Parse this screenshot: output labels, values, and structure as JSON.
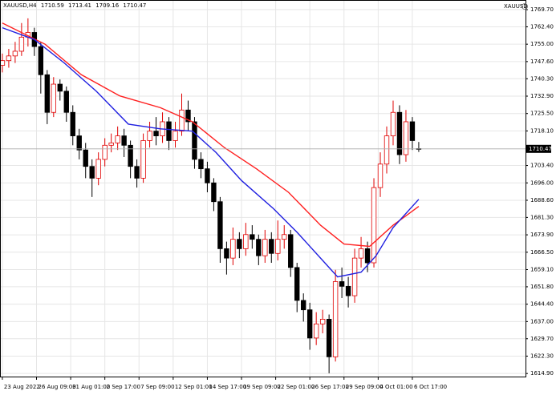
{
  "chart_data": {
    "type": "candlestick",
    "title": "XAUUSD,H4",
    "symbol": "XAUUSD",
    "up_color": "#e00000",
    "down_color": "#000000",
    "grid": true,
    "xlim": [
      -1.1,
      245
    ],
    "ylim": [
      1613.6,
      1773.8
    ],
    "xticks": [
      {
        "value": 0,
        "label": "23 Aug 2022"
      },
      {
        "value": 16,
        "label": "26 Aug 09:00"
      },
      {
        "value": 32,
        "label": "31 Aug 01:00"
      },
      {
        "value": 48,
        "label": "2 Sep 17:00"
      },
      {
        "value": 64,
        "label": "7 Sep 09:00"
      },
      {
        "value": 80,
        "label": "12 Sep 01:00"
      },
      {
        "value": 96,
        "label": "14 Sep 17:00"
      },
      {
        "value": 112,
        "label": "19 Sep 09:00"
      },
      {
        "value": 128,
        "label": "22 Sep 01:00"
      },
      {
        "value": 144,
        "label": "26 Sep 17:00"
      },
      {
        "value": 160,
        "label": "29 Sep 09:00"
      },
      {
        "value": 176,
        "label": "4 Oct 01:00"
      },
      {
        "value": 192,
        "label": "6 Oct 17:00"
      }
    ],
    "yticks": [
      {
        "value": 1769.7,
        "label": "1769.70"
      },
      {
        "value": 1762.4,
        "label": "1762.40"
      },
      {
        "value": 1755.0,
        "label": "1755.00"
      },
      {
        "value": 1747.6,
        "label": "1747.60"
      },
      {
        "value": 1740.3,
        "label": "1740.30"
      },
      {
        "value": 1732.9,
        "label": "1732.90"
      },
      {
        "value": 1725.5,
        "label": "1725.50"
      },
      {
        "value": 1718.1,
        "label": "1718.10"
      },
      {
        "value": 1703.4,
        "label": "1703.40"
      },
      {
        "value": 1696.0,
        "label": "1696.00"
      },
      {
        "value": 1688.6,
        "label": "1688.60"
      },
      {
        "value": 1681.3,
        "label": "1681.30"
      },
      {
        "value": 1673.9,
        "label": "1673.90"
      },
      {
        "value": 1666.5,
        "label": "1666.50"
      },
      {
        "value": 1659.1,
        "label": "1659.10"
      },
      {
        "value": 1651.8,
        "label": "1651.80"
      },
      {
        "value": 1644.4,
        "label": "1644.40"
      },
      {
        "value": 1637.0,
        "label": "1637.00"
      },
      {
        "value": 1629.7,
        "label": "1629.70"
      },
      {
        "value": 1622.3,
        "label": "1622.30"
      },
      {
        "value": 1614.9,
        "label": "1614.90"
      }
    ],
    "x": [
      0,
      3,
      6,
      9,
      12,
      15,
      18,
      21,
      24,
      27,
      30,
      33,
      36,
      39,
      42,
      45,
      48,
      51,
      54,
      57,
      60,
      63,
      66,
      69,
      72,
      75,
      78,
      81,
      84,
      87,
      90,
      93,
      96,
      99,
      102,
      105,
      108,
      111,
      114,
      117,
      120,
      123,
      126,
      129,
      132,
      135,
      138,
      141,
      144,
      147,
      150,
      153,
      156,
      159,
      162,
      165,
      168,
      171,
      174,
      177,
      180,
      183,
      186,
      189,
      192,
      195
    ],
    "open": [
      1746,
      1748,
      1750,
      1752,
      1758,
      1760,
      1754,
      1742,
      1726,
      1738,
      1735,
      1726,
      1716,
      1710,
      1703,
      1698,
      1706,
      1712,
      1713,
      1716,
      1712,
      1703,
      1698,
      1714,
      1718,
      1716,
      1722,
      1714,
      1718,
      1727,
      1722,
      1706,
      1702,
      1696,
      1688,
      1668,
      1664,
      1672,
      1668,
      1674,
      1672,
      1665,
      1672,
      1666,
      1672,
      1674,
      1660,
      1646,
      1642,
      1630,
      1636,
      1638,
      1622,
      1654,
      1652,
      1648,
      1664,
      1668,
      1662,
      1694,
      1704,
      1716,
      1726,
      1708,
      1722,
      1710.59
    ],
    "high": [
      1751,
      1753,
      1756,
      1764,
      1766,
      1762,
      1756,
      1744,
      1741,
      1740,
      1737,
      1729,
      1719,
      1713,
      1706,
      1709,
      1715,
      1717,
      1720,
      1719,
      1714,
      1706,
      1717,
      1722,
      1724,
      1726,
      1724,
      1722,
      1734,
      1731,
      1724,
      1709,
      1705,
      1698,
      1690,
      1671,
      1677,
      1675,
      1679,
      1678,
      1674,
      1676,
      1675,
      1680,
      1678,
      1676,
      1662,
      1649,
      1645,
      1641,
      1642,
      1640,
      1659,
      1660,
      1656,
      1668,
      1673,
      1671,
      1698,
      1709,
      1720,
      1731,
      1729,
      1727,
      1724,
      1713.41
    ],
    "low": [
      1743,
      1745,
      1747,
      1750,
      1754,
      1750,
      1734,
      1721,
      1724,
      1731,
      1722,
      1712,
      1706,
      1698,
      1690,
      1695,
      1703,
      1709,
      1710,
      1707,
      1698,
      1694,
      1696,
      1711,
      1712,
      1713,
      1710,
      1711,
      1716,
      1718,
      1702,
      1698,
      1692,
      1684,
      1662,
      1657,
      1661,
      1664,
      1665,
      1668,
      1661,
      1662,
      1662,
      1663,
      1668,
      1656,
      1641,
      1637,
      1625,
      1627,
      1632,
      1615,
      1620,
      1647,
      1643,
      1645,
      1660,
      1658,
      1660,
      1690,
      1700,
      1712,
      1704,
      1705,
      1710,
      1709.16
    ],
    "close": [
      1748,
      1750,
      1752,
      1758,
      1760,
      1754,
      1742,
      1726,
      1738,
      1735,
      1726,
      1716,
      1710,
      1703,
      1698,
      1706,
      1712,
      1713,
      1716,
      1712,
      1703,
      1698,
      1714,
      1718,
      1716,
      1722,
      1714,
      1718,
      1727,
      1722,
      1706,
      1702,
      1696,
      1688,
      1668,
      1664,
      1672,
      1668,
      1674,
      1672,
      1665,
      1672,
      1666,
      1672,
      1674,
      1660,
      1646,
      1642,
      1630,
      1636,
      1638,
      1622,
      1654,
      1652,
      1648,
      1664,
      1668,
      1662,
      1694,
      1704,
      1716,
      1726,
      1708,
      1722,
      1714,
      1710.47
    ],
    "lines": [
      {
        "color": "#ff2020",
        "x": [
          0,
          20,
          37,
          55,
          74,
          89,
          104,
          119,
          134,
          149,
          160,
          172,
          183,
          195
        ],
        "values": [
          1764,
          1755,
          1742,
          1733,
          1728,
          1722,
          1711,
          1702,
          1692,
          1678,
          1670,
          1669,
          1678,
          1686
        ]
      },
      {
        "color": "#2020e0",
        "x": [
          0,
          15,
          29,
          44,
          59,
          74,
          89,
          100,
          112,
          127,
          138,
          149,
          157,
          168,
          175,
          183,
          195
        ],
        "values": [
          1762,
          1757,
          1747,
          1735,
          1721,
          1719,
          1718,
          1709,
          1697,
          1685,
          1675,
          1664,
          1656,
          1658,
          1665,
          1677,
          1689
        ]
      }
    ]
  }
}
